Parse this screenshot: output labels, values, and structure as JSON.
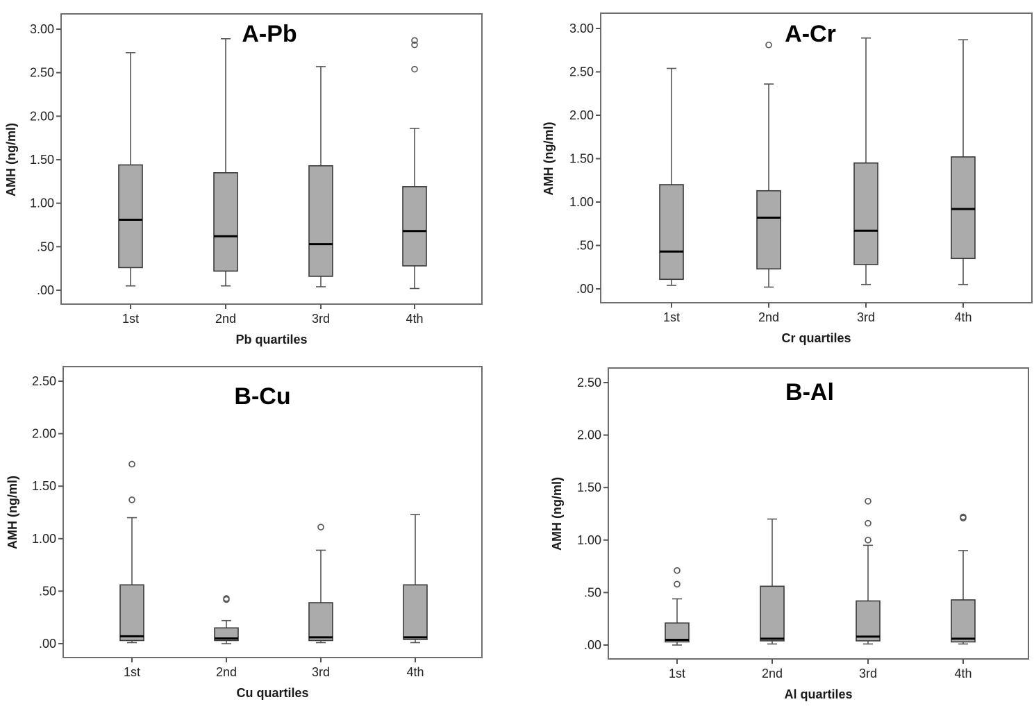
{
  "chart_data": [
    {
      "type": "boxplot",
      "title": "A-Pb",
      "xlabel": "Pb  quartiles",
      "ylabel": "AMH (ng/ml)",
      "ylim": [
        -0.15,
        3.17
      ],
      "yticks": [
        0,
        0.5,
        1.0,
        1.5,
        2.0,
        2.5,
        3.0
      ],
      "ytick_labels": [
        ".00",
        ".50",
        "1.00",
        "1.50",
        "2.00",
        "2.50",
        "3.00"
      ],
      "categories": [
        "1st",
        "2nd",
        "3rd",
        "4th"
      ],
      "boxes": [
        {
          "whisker_low": 0.05,
          "q1": 0.26,
          "median": 0.81,
          "q3": 1.44,
          "whisker_high": 2.73,
          "outliers": []
        },
        {
          "whisker_low": 0.05,
          "q1": 0.22,
          "median": 0.62,
          "q3": 1.35,
          "whisker_high": 2.89,
          "outliers": []
        },
        {
          "whisker_low": 0.04,
          "q1": 0.16,
          "median": 0.53,
          "q3": 1.43,
          "whisker_high": 2.57,
          "outliers": []
        },
        {
          "whisker_low": 0.02,
          "q1": 0.28,
          "median": 0.68,
          "q3": 1.19,
          "whisker_high": 1.86,
          "outliers": [
            2.87,
            2.82,
            2.54
          ]
        }
      ],
      "grid": false
    },
    {
      "type": "boxplot",
      "title": "A-Cr",
      "xlabel": "Cr  quartiles",
      "ylabel": "AMH (ng/ml)",
      "ylim": [
        -0.15,
        3.17
      ],
      "yticks": [
        0,
        0.5,
        1.0,
        1.5,
        2.0,
        2.5,
        3.0
      ],
      "ytick_labels": [
        ".00",
        ".50",
        "1.00",
        "1.50",
        "2.00",
        "2.50",
        "3.00"
      ],
      "categories": [
        "1st",
        "2nd",
        "3rd",
        "4th"
      ],
      "boxes": [
        {
          "whisker_low": 0.04,
          "q1": 0.11,
          "median": 0.43,
          "q3": 1.2,
          "whisker_high": 2.54,
          "outliers": []
        },
        {
          "whisker_low": 0.02,
          "q1": 0.23,
          "median": 0.82,
          "q3": 1.13,
          "whisker_high": 2.36,
          "outliers": [
            2.81
          ]
        },
        {
          "whisker_low": 0.05,
          "q1": 0.28,
          "median": 0.67,
          "q3": 1.45,
          "whisker_high": 2.89,
          "outliers": []
        },
        {
          "whisker_low": 0.05,
          "q1": 0.35,
          "median": 0.92,
          "q3": 1.52,
          "whisker_high": 2.87,
          "outliers": []
        }
      ],
      "grid": false
    },
    {
      "type": "boxplot",
      "title": "B-Cu",
      "xlabel": "Cu quartiles",
      "ylabel": "AMH (ng/ml)",
      "ylim": [
        -0.14,
        2.64
      ],
      "yticks": [
        0,
        0.5,
        1.0,
        1.5,
        2.0,
        2.5
      ],
      "ytick_labels": [
        ".00",
        ".50",
        "1.00",
        "1.50",
        "2.00",
        "2.50"
      ],
      "categories": [
        "1st",
        "2nd",
        "3rd",
        "4th"
      ],
      "boxes": [
        {
          "whisker_low": 0.01,
          "q1": 0.03,
          "median": 0.07,
          "q3": 0.56,
          "whisker_high": 1.2,
          "outliers": [
            1.71,
            1.37
          ]
        },
        {
          "whisker_low": 0.0,
          "q1": 0.03,
          "median": 0.05,
          "q3": 0.15,
          "whisker_high": 0.22,
          "outliers": [
            0.43,
            0.42
          ]
        },
        {
          "whisker_low": 0.01,
          "q1": 0.03,
          "median": 0.06,
          "q3": 0.39,
          "whisker_high": 0.89,
          "outliers": [
            1.11
          ]
        },
        {
          "whisker_low": 0.01,
          "q1": 0.04,
          "median": 0.06,
          "q3": 0.56,
          "whisker_high": 1.23,
          "outliers": []
        }
      ],
      "grid": false
    },
    {
      "type": "boxplot",
      "title": "B-Al",
      "xlabel": "Al  quartiles",
      "ylabel": "AMH (ng/ml)",
      "ylim": [
        -0.14,
        2.64
      ],
      "yticks": [
        0,
        0.5,
        1.0,
        1.5,
        2.0,
        2.5
      ],
      "ytick_labels": [
        ".00",
        ".50",
        "1.00",
        "1.50",
        "2.00",
        "2.50"
      ],
      "categories": [
        "1st",
        "2nd",
        "3rd",
        "4th"
      ],
      "boxes": [
        {
          "whisker_low": 0.0,
          "q1": 0.03,
          "median": 0.05,
          "q3": 0.21,
          "whisker_high": 0.44,
          "outliers": [
            0.71,
            0.58
          ]
        },
        {
          "whisker_low": 0.01,
          "q1": 0.04,
          "median": 0.06,
          "q3": 0.56,
          "whisker_high": 1.2,
          "outliers": []
        },
        {
          "whisker_low": 0.01,
          "q1": 0.04,
          "median": 0.08,
          "q3": 0.42,
          "whisker_high": 0.95,
          "outliers": [
            1.37,
            1.16,
            1.0
          ]
        },
        {
          "whisker_low": 0.01,
          "q1": 0.03,
          "median": 0.06,
          "q3": 0.43,
          "whisker_high": 0.9,
          "outliers": [
            1.22,
            1.21
          ]
        }
      ],
      "grid": false
    }
  ]
}
